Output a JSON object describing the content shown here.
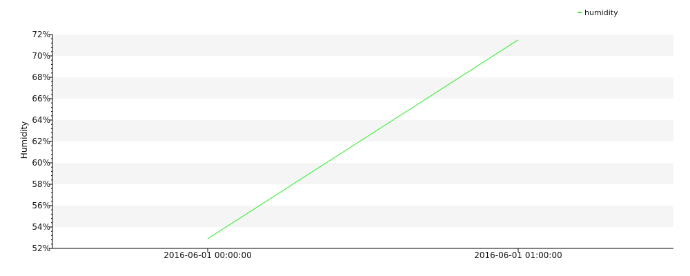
{
  "chart_data": {
    "type": "line",
    "ylabel": "Humidity",
    "xlabel": "",
    "y_unit": "%",
    "ylim": [
      52,
      72
    ],
    "y_ticks": [
      52,
      54,
      56,
      58,
      60,
      62,
      64,
      66,
      68,
      70,
      72
    ],
    "y_tick_labels": [
      "52%",
      "54%",
      "56%",
      "58%",
      "60%",
      "62%",
      "64%",
      "66%",
      "68%",
      "70%",
      "72%"
    ],
    "x_tick_labels": [
      "2016-06-01 00:00:00",
      "2016-06-01 01:00:00"
    ],
    "grid": "alternating horizontal bands",
    "legend_position": "top-right",
    "series": [
      {
        "name": "humidity",
        "color": "#44ee44",
        "x": [
          "2016-06-01 00:00:00",
          "2016-06-01 01:00:00"
        ],
        "values": [
          52.9,
          71.5
        ]
      }
    ]
  }
}
